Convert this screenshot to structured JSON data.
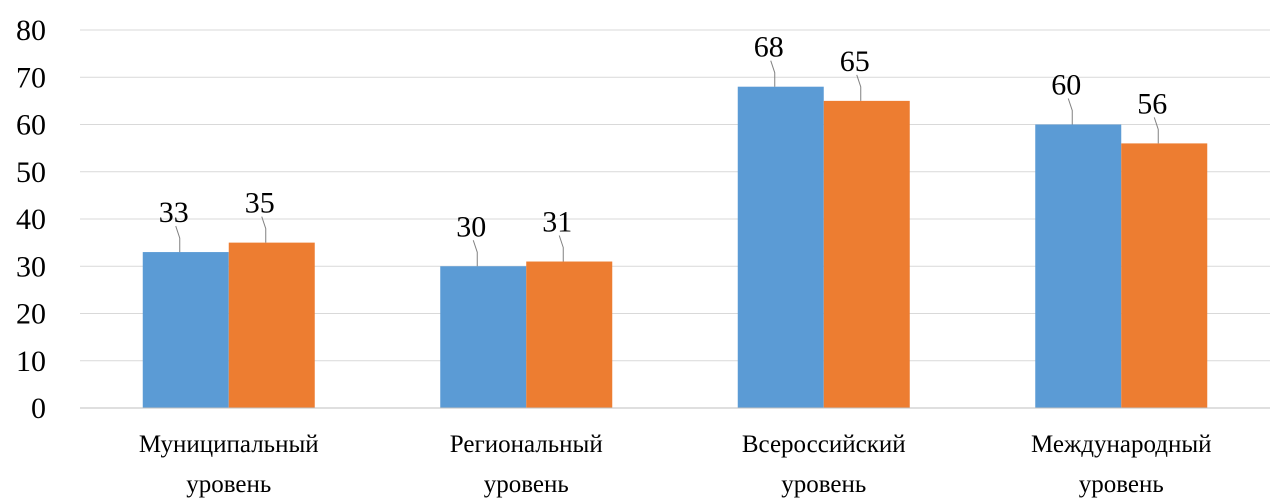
{
  "chart_data": {
    "type": "bar",
    "categories": [
      [
        "Муниципальный",
        "уровень"
      ],
      [
        "Региональный",
        "уровень"
      ],
      [
        "Всероссийский",
        "уровень"
      ],
      [
        "Международный",
        "уровень"
      ]
    ],
    "series": [
      {
        "values": [
          33,
          30,
          68,
          60
        ],
        "color": "#5b9bd5"
      },
      {
        "values": [
          35,
          31,
          65,
          56
        ],
        "color": "#ed7d31"
      }
    ],
    "ylim": [
      0,
      80
    ],
    "yticks": [
      0,
      10,
      20,
      30,
      40,
      50,
      60,
      70,
      80
    ],
    "grid": true,
    "data_labels": true,
    "legend": "none",
    "title": "",
    "xlabel": "",
    "ylabel": ""
  }
}
